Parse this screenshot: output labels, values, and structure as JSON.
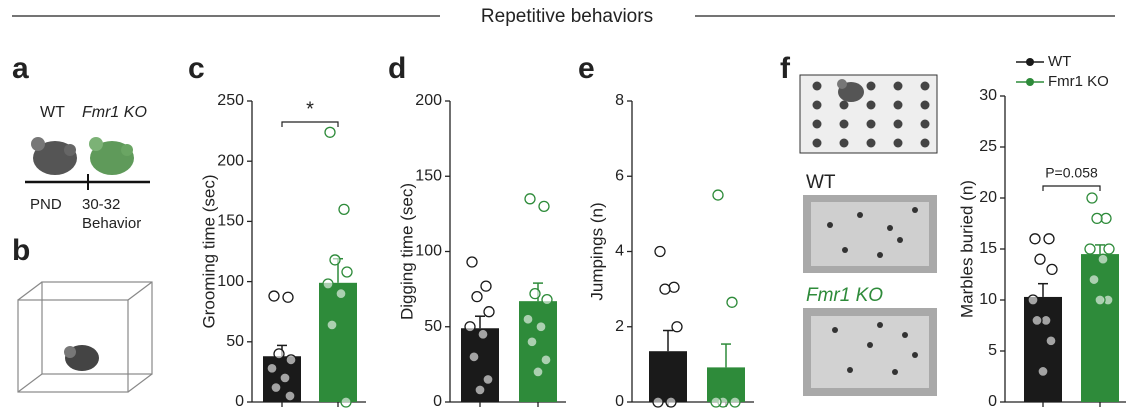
{
  "title": "Repetitive behaviors",
  "panel_labels": [
    "a",
    "b",
    "c",
    "d",
    "e",
    "f"
  ],
  "panel_a": {
    "groups": [
      "WT",
      "Fmr1 KO"
    ],
    "timeline": [
      "PND",
      "30-32",
      "Behavior"
    ]
  },
  "panel_f_images": [
    "WT",
    "Fmr1 KO"
  ],
  "chart_data": [
    {
      "type": "bar",
      "y_label": "Grooming time (sec)",
      "categories": [
        null,
        null
      ],
      "values": [
        38,
        99
      ],
      "errors": [
        9,
        20
      ],
      "colors": [
        "#1a1a1a",
        "#2e8b3a"
      ],
      "points": [
        [
          88,
          87,
          40,
          35,
          28,
          20,
          12,
          5
        ],
        [
          224,
          160,
          118,
          108,
          98,
          90,
          64,
          0
        ]
      ],
      "ylim": [
        0,
        250
      ],
      "yticks": [
        0,
        50,
        100,
        150,
        200,
        250
      ],
      "annotation": "*"
    },
    {
      "type": "bar",
      "y_label": "Digging time (sec)",
      "categories": [
        null,
        null
      ],
      "values": [
        49,
        67
      ],
      "errors": [
        8,
        12
      ],
      "colors": [
        "#1a1a1a",
        "#2e8b3a"
      ],
      "points": [
        [
          93,
          77,
          70,
          60,
          50,
          45,
          30,
          15,
          8
        ],
        [
          135,
          130,
          72,
          68,
          55,
          50,
          40,
          28,
          20
        ]
      ],
      "ylim": [
        0,
        200
      ],
      "yticks": [
        0,
        50,
        100,
        150,
        200
      ]
    },
    {
      "type": "bar",
      "y_label": "Jumpings (n)",
      "categories": [
        null,
        null
      ],
      "values": [
        1.35,
        0.92
      ],
      "errors": [
        0.55,
        0.62
      ],
      "colors": [
        "#1a1a1a",
        "#2e8b3a"
      ],
      "points": [
        [
          4.0,
          3.05,
          3.0,
          2.0,
          0,
          0
        ],
        [
          5.5,
          2.65,
          0,
          0,
          0
        ]
      ],
      "ylim": [
        0,
        8
      ],
      "yticks": [
        0,
        2,
        4,
        6,
        8
      ]
    },
    {
      "type": "bar",
      "y_label": "Marbles buried (n)",
      "categories": [
        null,
        null
      ],
      "values": [
        10.3,
        14.5
      ],
      "errors": [
        1.3,
        0.9
      ],
      "colors": [
        "#1a1a1a",
        "#2e8b3a"
      ],
      "points": [
        [
          16,
          16,
          14,
          13,
          10,
          8,
          8,
          6,
          3
        ],
        [
          20,
          18,
          18,
          15,
          15,
          14,
          12,
          10,
          10
        ]
      ],
      "ylim": [
        0,
        30
      ],
      "yticks": [
        0,
        5,
        10,
        15,
        20,
        25,
        30
      ],
      "annotation": "P=0.058",
      "legend": [
        "WT",
        "Fmr1 KO"
      ]
    }
  ]
}
